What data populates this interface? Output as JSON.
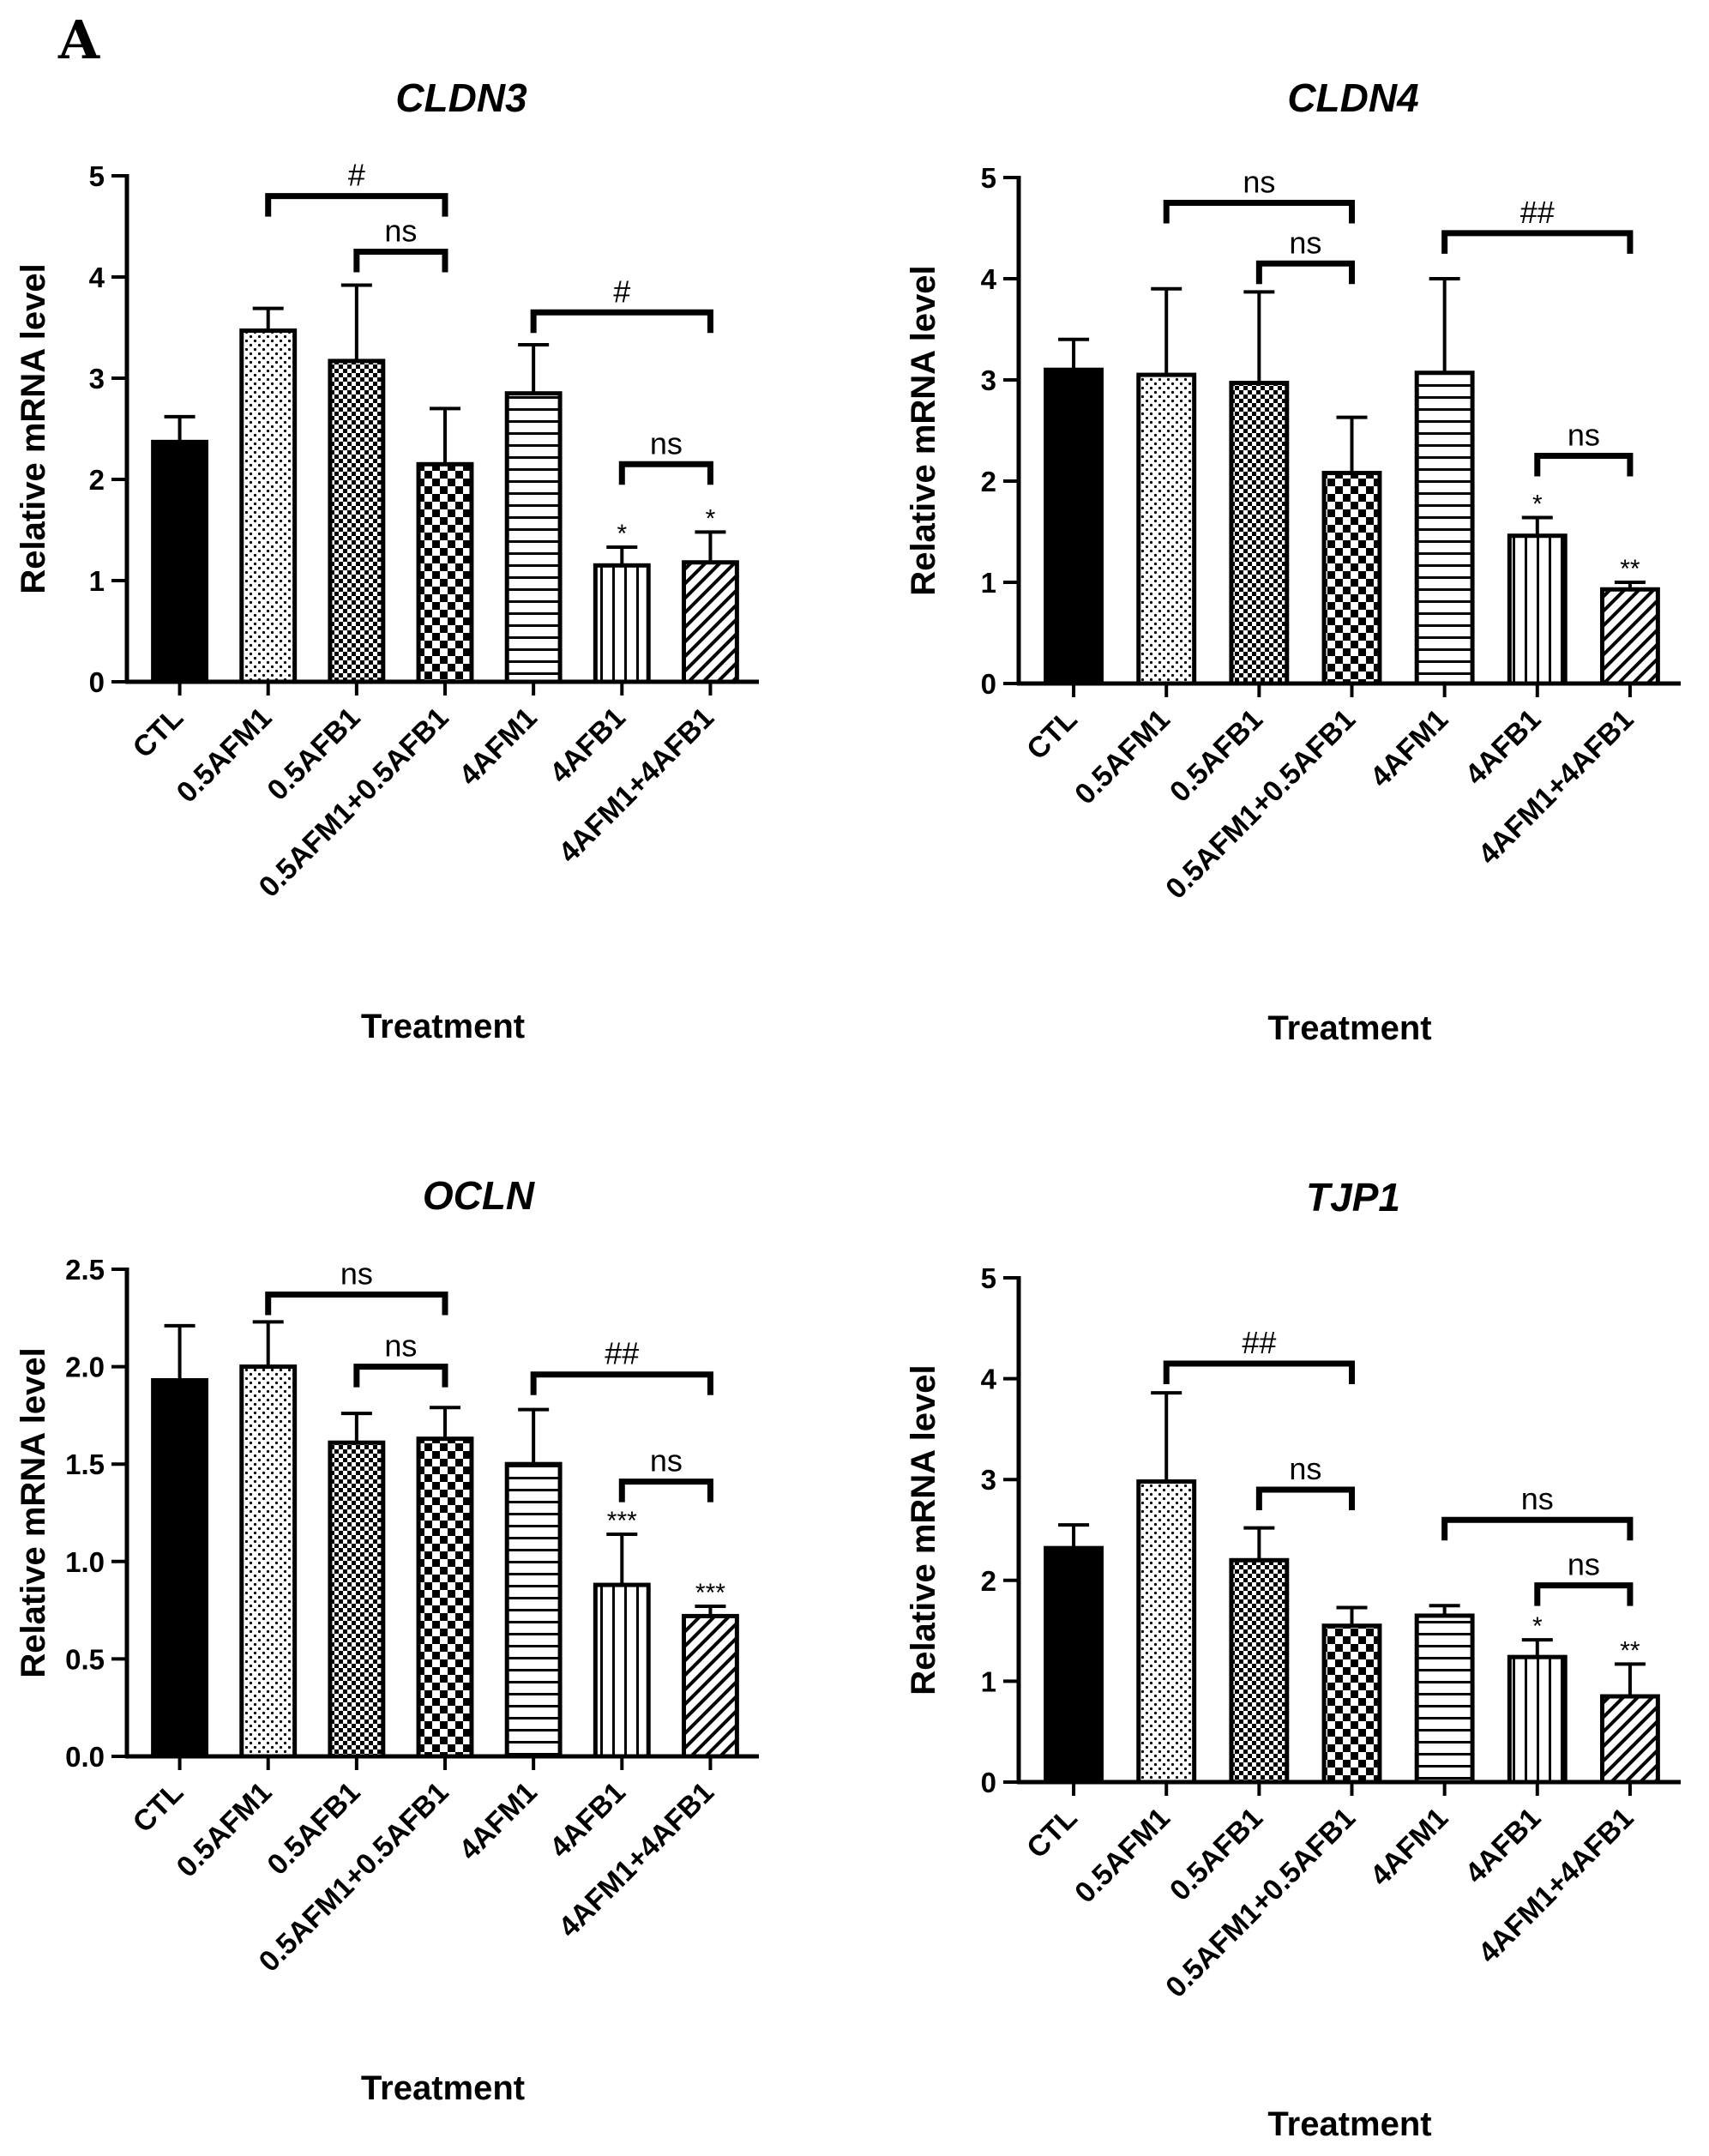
{
  "panel_label": "A",
  "chart_data": [
    {
      "type": "bar",
      "title": "CLDN3",
      "xlabel": "Treatment",
      "ylabel": "Relative mRNA level",
      "ylim": [
        0,
        5
      ],
      "yticks": [
        "0",
        "1",
        "2",
        "3",
        "4",
        "5"
      ],
      "categories": [
        "CTL",
        "0.5AFM1",
        "0.5AFB1",
        "0.5AFM1+0.5AFB1",
        "4AFM1",
        "4AFB1",
        "4AFM1+4AFB1"
      ],
      "values": [
        2.37,
        3.47,
        3.17,
        2.15,
        2.85,
        1.15,
        1.18
      ],
      "errors": [
        0.25,
        0.22,
        0.75,
        0.55,
        0.48,
        0.18,
        0.3
      ],
      "stars": [
        "",
        "",
        "",
        "",
        "",
        "*",
        "*"
      ],
      "brackets": [
        {
          "from": 1,
          "to": 3,
          "label": "#",
          "y": 4.8
        },
        {
          "from": 2,
          "to": 3,
          "label": "ns",
          "y": 4.25
        },
        {
          "from": 4,
          "to": 6,
          "label": "#",
          "y": 3.65
        },
        {
          "from": 5,
          "to": 6,
          "label": "ns",
          "y": 2.15
        }
      ],
      "patterns": [
        "solid",
        "dots",
        "dense-checker",
        "checker",
        "hlines",
        "vlines",
        "diagonal"
      ],
      "colors": {
        "bar": "#000000",
        "fill": "#ffffff"
      },
      "grid": false
    },
    {
      "type": "bar",
      "title": "CLDN4",
      "xlabel": "Treatment",
      "ylabel": "Relative mRNA level",
      "ylim": [
        0,
        5
      ],
      "yticks": [
        "0",
        "1",
        "2",
        "3",
        "4",
        "5"
      ],
      "categories": [
        "CTL",
        "0.5AFM1",
        "0.5AFB1",
        "0.5AFM1+0.5AFB1",
        "4AFM1",
        "4AFB1",
        "4AFM1+4AFB1"
      ],
      "values": [
        3.1,
        3.05,
        2.97,
        2.08,
        3.07,
        1.46,
        0.93
      ],
      "errors": [
        0.3,
        0.85,
        0.9,
        0.55,
        0.93,
        0.18,
        0.07
      ],
      "stars": [
        "",
        "",
        "",
        "",
        "",
        "*",
        "**"
      ],
      "brackets": [
        {
          "from": 1,
          "to": 3,
          "label": "ns",
          "y": 4.75
        },
        {
          "from": 2,
          "to": 3,
          "label": "ns",
          "y": 4.15
        },
        {
          "from": 4,
          "to": 6,
          "label": "##",
          "y": 4.45
        },
        {
          "from": 5,
          "to": 6,
          "label": "ns",
          "y": 2.25
        }
      ],
      "patterns": [
        "solid",
        "dots",
        "dense-checker",
        "checker",
        "hlines",
        "vlines",
        "diagonal"
      ],
      "colors": {
        "bar": "#000000",
        "fill": "#ffffff"
      },
      "grid": false
    },
    {
      "type": "bar",
      "title": "OCLN",
      "xlabel": "Treatment",
      "ylabel": "Relative mRNA level",
      "ylim": [
        0,
        2.5
      ],
      "yticks": [
        "0.0",
        "0.5",
        "1.0",
        "1.5",
        "2.0",
        "2.5"
      ],
      "categories": [
        "CTL",
        "0.5AFM1",
        "0.5AFB1",
        "0.5AFM1+0.5AFB1",
        "4AFM1",
        "4AFB1",
        "4AFM1+4AFB1"
      ],
      "values": [
        1.93,
        2.0,
        1.61,
        1.63,
        1.5,
        0.88,
        0.72
      ],
      "errors": [
        0.28,
        0.23,
        0.15,
        0.16,
        0.28,
        0.26,
        0.05
      ],
      "stars": [
        "",
        "",
        "",
        "",
        "",
        "***",
        "***"
      ],
      "brackets": [
        {
          "from": 1,
          "to": 3,
          "label": "ns",
          "y": 2.37
        },
        {
          "from": 2,
          "to": 3,
          "label": "ns",
          "y": 2.0
        },
        {
          "from": 4,
          "to": 6,
          "label": "##",
          "y": 1.96
        },
        {
          "from": 5,
          "to": 6,
          "label": "ns",
          "y": 1.41
        }
      ],
      "patterns": [
        "solid",
        "dots",
        "dense-checker",
        "checker",
        "hlines",
        "vlines",
        "diagonal"
      ],
      "colors": {
        "bar": "#000000",
        "fill": "#ffffff"
      },
      "grid": false
    },
    {
      "type": "bar",
      "title": "TJP1",
      "xlabel": "Treatment",
      "ylabel": "Relative mRNA level",
      "ylim": [
        0,
        5
      ],
      "yticks": [
        "0",
        "1",
        "2",
        "3",
        "4",
        "5"
      ],
      "categories": [
        "CTL",
        "0.5AFM1",
        "0.5AFB1",
        "0.5AFM1+0.5AFB1",
        "4AFM1",
        "4AFB1",
        "4AFM1+4AFB1"
      ],
      "values": [
        2.32,
        2.98,
        2.2,
        1.55,
        1.65,
        1.24,
        0.85
      ],
      "errors": [
        0.23,
        0.88,
        0.32,
        0.18,
        0.1,
        0.17,
        0.32
      ],
      "stars": [
        "",
        "",
        "",
        "",
        "",
        "*",
        "**"
      ],
      "brackets": [
        {
          "from": 1,
          "to": 3,
          "label": "##",
          "y": 4.15
        },
        {
          "from": 2,
          "to": 3,
          "label": "ns",
          "y": 2.9
        },
        {
          "from": 4,
          "to": 6,
          "label": "ns",
          "y": 2.6
        },
        {
          "from": 5,
          "to": 6,
          "label": "ns",
          "y": 1.95
        }
      ],
      "patterns": [
        "solid",
        "dots",
        "dense-checker",
        "checker",
        "hlines",
        "vlines",
        "diagonal"
      ],
      "colors": {
        "bar": "#000000",
        "fill": "#ffffff"
      },
      "grid": false
    }
  ]
}
